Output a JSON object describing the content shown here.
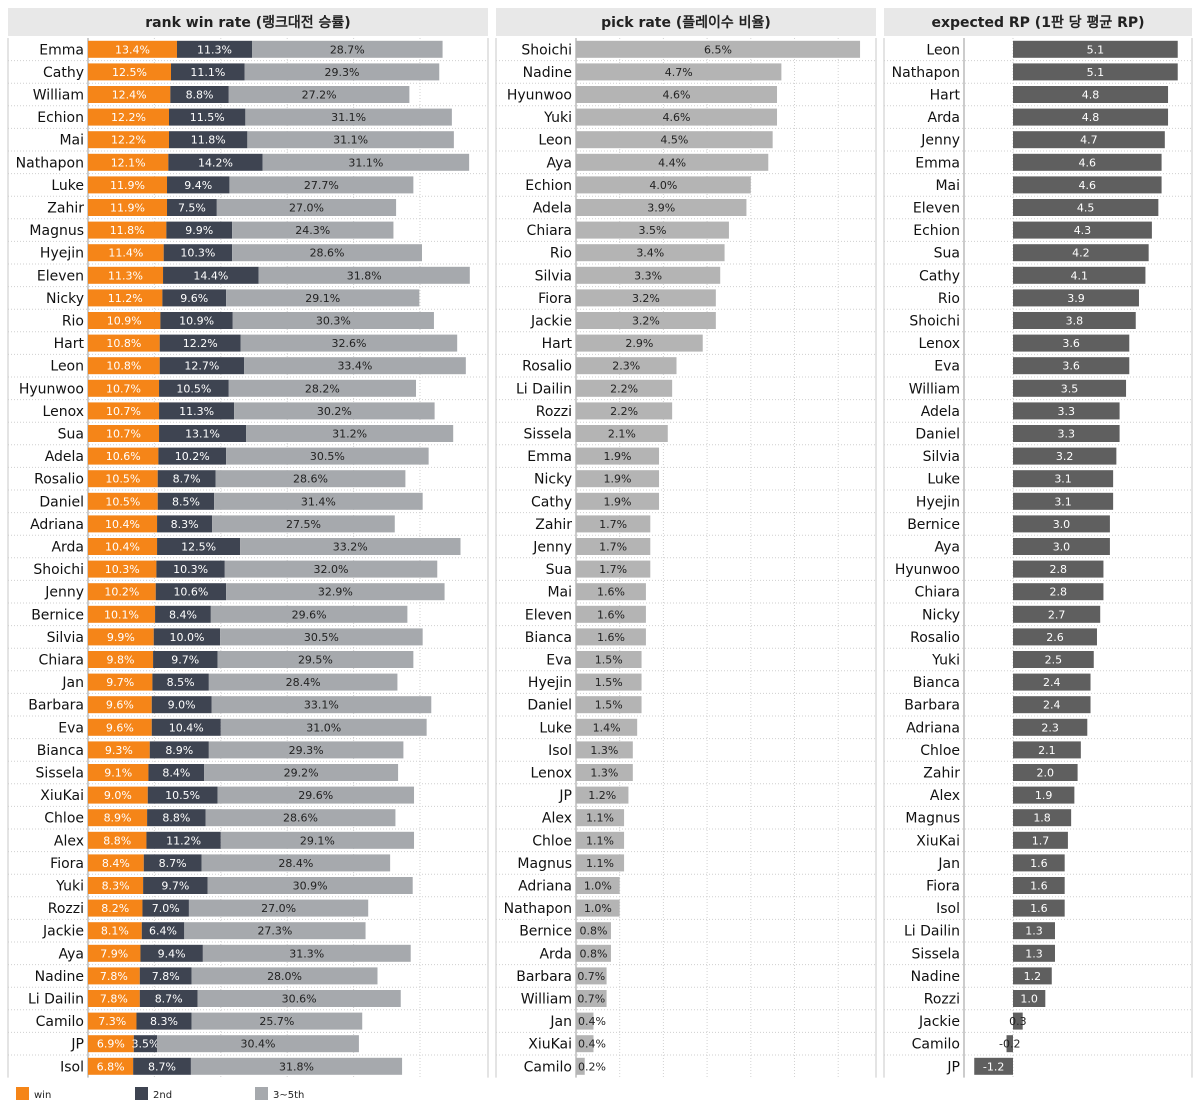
{
  "colors": {
    "win": "#f58518",
    "second": "#3e4451",
    "third": "#a6a9ad",
    "pick": "#b4b4b4",
    "rp": "#5f5f5f",
    "header_bg": "#e8e8e8"
  },
  "chart_data": [
    {
      "type": "bar",
      "orientation": "horizontal",
      "stacked": true,
      "title": "rank win rate (랭크대전 승률)",
      "categories": [
        "Emma",
        "Cathy",
        "William",
        "Echion",
        "Mai",
        "Nathapon",
        "Luke",
        "Zahir",
        "Magnus",
        "Hyejin",
        "Eleven",
        "Nicky",
        "Rio",
        "Hart",
        "Leon",
        "Hyunwoo",
        "Lenox",
        "Sua",
        "Adela",
        "Rosalio",
        "Daniel",
        "Adriana",
        "Arda",
        "Shoichi",
        "Jenny",
        "Bernice",
        "Silvia",
        "Chiara",
        "Jan",
        "Barbara",
        "Eva",
        "Bianca",
        "Sissela",
        "XiuKai",
        "Chloe",
        "Alex",
        "Fiora",
        "Yuki",
        "Rozzi",
        "Jackie",
        "Aya",
        "Nadine",
        "Li Dailin",
        "Camilo",
        "JP",
        "Isol"
      ],
      "series": [
        {
          "name": "win",
          "values": [
            13.4,
            12.5,
            12.4,
            12.2,
            12.2,
            12.1,
            11.9,
            11.9,
            11.8,
            11.4,
            11.3,
            11.2,
            10.9,
            10.8,
            10.8,
            10.7,
            10.7,
            10.7,
            10.6,
            10.5,
            10.5,
            10.4,
            10.4,
            10.3,
            10.2,
            10.1,
            9.9,
            9.8,
            9.7,
            9.6,
            9.6,
            9.3,
            9.1,
            9.0,
            8.9,
            8.8,
            8.4,
            8.3,
            8.2,
            8.1,
            7.9,
            7.8,
            7.8,
            7.3,
            6.9,
            6.8
          ]
        },
        {
          "name": "2nd",
          "values": [
            11.3,
            11.1,
            8.8,
            11.5,
            11.8,
            14.2,
            9.4,
            7.5,
            9.9,
            10.3,
            14.4,
            9.6,
            10.9,
            12.2,
            12.7,
            10.5,
            11.3,
            13.1,
            10.2,
            8.7,
            8.5,
            8.3,
            12.5,
            10.3,
            10.6,
            8.4,
            10.0,
            9.7,
            8.5,
            9.0,
            10.4,
            8.9,
            8.4,
            10.5,
            8.8,
            11.2,
            8.7,
            9.7,
            7.0,
            6.4,
            9.4,
            7.8,
            8.7,
            8.3,
            3.5,
            8.7
          ]
        },
        {
          "name": "3~5th",
          "values": [
            28.7,
            29.3,
            27.2,
            31.1,
            31.1,
            31.1,
            27.7,
            27.0,
            24.3,
            28.6,
            31.8,
            29.1,
            30.3,
            32.6,
            33.4,
            28.2,
            30.2,
            31.2,
            30.5,
            28.6,
            31.4,
            27.5,
            33.2,
            32.0,
            32.9,
            29.6,
            30.5,
            29.5,
            28.4,
            33.1,
            31.0,
            29.3,
            29.2,
            29.6,
            28.6,
            29.1,
            28.4,
            30.9,
            27.0,
            27.3,
            31.3,
            28.0,
            30.6,
            25.7,
            30.4,
            31.8
          ]
        }
      ],
      "value_suffix": "%",
      "legend": "bottom-left"
    },
    {
      "type": "bar",
      "orientation": "horizontal",
      "title": "pick rate (플레이수 비율)",
      "categories": [
        "Shoichi",
        "Nadine",
        "Hyunwoo",
        "Yuki",
        "Leon",
        "Aya",
        "Echion",
        "Adela",
        "Chiara",
        "Rio",
        "Silvia",
        "Fiora",
        "Jackie",
        "Hart",
        "Rosalio",
        "Li Dailin",
        "Rozzi",
        "Sissela",
        "Emma",
        "Nicky",
        "Cathy",
        "Zahir",
        "Jenny",
        "Sua",
        "Mai",
        "Eleven",
        "Bianca",
        "Eva",
        "Hyejin",
        "Daniel",
        "Luke",
        "Isol",
        "Lenox",
        "JP",
        "Alex",
        "Chloe",
        "Magnus",
        "Adriana",
        "Nathapon",
        "Bernice",
        "Arda",
        "Barbara",
        "William",
        "Jan",
        "XiuKai",
        "Camilo"
      ],
      "values": [
        6.5,
        4.7,
        4.6,
        4.6,
        4.5,
        4.4,
        4.0,
        3.9,
        3.5,
        3.4,
        3.3,
        3.2,
        3.2,
        2.9,
        2.3,
        2.2,
        2.2,
        2.1,
        1.9,
        1.9,
        1.9,
        1.7,
        1.7,
        1.7,
        1.6,
        1.6,
        1.6,
        1.5,
        1.5,
        1.5,
        1.4,
        1.3,
        1.3,
        1.2,
        1.1,
        1.1,
        1.1,
        1.0,
        1.0,
        0.8,
        0.8,
        0.7,
        0.7,
        0.4,
        0.4,
        0.2
      ],
      "value_suffix": "%",
      "xlim": [
        0,
        6.5
      ]
    },
    {
      "type": "bar",
      "orientation": "horizontal",
      "title": "expected RP (1판 당 평균 RP)",
      "categories": [
        "Leon",
        "Nathapon",
        "Hart",
        "Arda",
        "Jenny",
        "Emma",
        "Mai",
        "Eleven",
        "Echion",
        "Sua",
        "Cathy",
        "Rio",
        "Shoichi",
        "Lenox",
        "Eva",
        "William",
        "Adela",
        "Daniel",
        "Silvia",
        "Luke",
        "Hyejin",
        "Bernice",
        "Aya",
        "Hyunwoo",
        "Chiara",
        "Nicky",
        "Rosalio",
        "Yuki",
        "Bianca",
        "Barbara",
        "Adriana",
        "Chloe",
        "Zahir",
        "Alex",
        "Magnus",
        "XiuKai",
        "Jan",
        "Fiora",
        "Isol",
        "Li Dailin",
        "Sissela",
        "Nadine",
        "Rozzi",
        "Jackie",
        "Camilo",
        "JP"
      ],
      "values": [
        5.1,
        5.1,
        4.8,
        4.8,
        4.7,
        4.6,
        4.6,
        4.5,
        4.3,
        4.2,
        4.1,
        3.9,
        3.8,
        3.6,
        3.6,
        3.5,
        3.3,
        3.3,
        3.2,
        3.1,
        3.1,
        3.0,
        3.0,
        2.8,
        2.8,
        2.7,
        2.6,
        2.5,
        2.4,
        2.4,
        2.3,
        2.1,
        2.0,
        1.9,
        1.8,
        1.7,
        1.6,
        1.6,
        1.6,
        1.3,
        1.3,
        1.2,
        1.0,
        0.3,
        -0.2,
        -1.2
      ],
      "xlim": [
        -1.2,
        5.1
      ]
    }
  ]
}
